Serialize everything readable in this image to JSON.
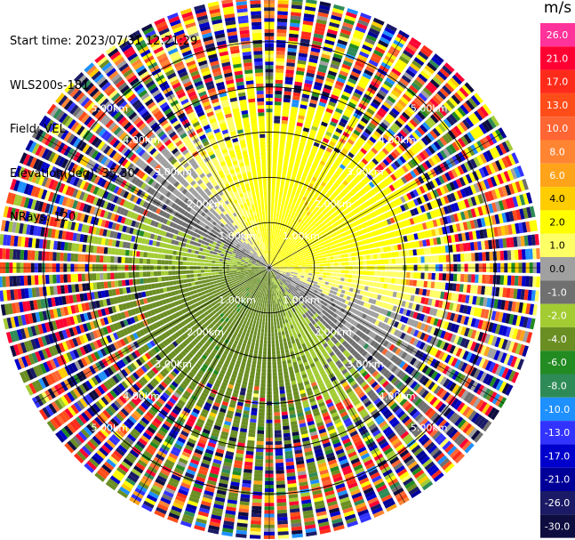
{
  "info": {
    "start_time": "Start time: 2023/07/31 12:21:29",
    "instrument": "WLS200s-181",
    "field": "Field: VEL",
    "elevation": "Elevation(deg): 35.30",
    "nrays": "NRays: 120"
  },
  "colorbar": {
    "unit": "m/s",
    "ticks": [
      "26.0",
      "21.0",
      "17.0",
      "13.0",
      "10.0",
      "8.0",
      "6.0",
      "4.0",
      "2.0",
      "1.0",
      "0.0",
      "-1.0",
      "-2.0",
      "-4.0",
      "-6.0",
      "-8.0",
      "-10.0",
      "-13.0",
      "-17.0",
      "-21.0",
      "-26.0",
      "-30.0"
    ],
    "colors": [
      "#ff3399",
      "#ff0033",
      "#ff2b1a",
      "#ff4d1a",
      "#ff6633",
      "#ff8533",
      "#ffa31a",
      "#ffcc00",
      "#ffff00",
      "#ffff66",
      "#a0a0a0",
      "#707070",
      "#a3cc33",
      "#6b8e23",
      "#228b22",
      "#2e8b57",
      "#1e90ff",
      "#3333ff",
      "#0000cc",
      "#000099",
      "#1a1a66",
      "#0d0d40"
    ]
  },
  "chart_data": {
    "type": "heatmap",
    "field": "VEL",
    "nrays": 120,
    "range_rings_km": [
      1,
      2,
      3,
      4,
      5
    ],
    "range_labels": [
      "1.00km",
      "2.00km",
      "3.00km",
      "4.00km",
      "5.00km"
    ],
    "max_range_km": 6.0,
    "azimuth_spokes_deg": [
      0,
      30,
      60,
      90,
      120,
      150,
      180,
      210,
      240,
      270,
      300,
      330
    ],
    "pattern": {
      "gate_km": 0.08,
      "near_field_km": 2.4,
      "wind_direction_deg": 35,
      "wind_speed_ms": 3.5,
      "noise_start_km": 2.6,
      "noise_full_km": 4.2
    }
  }
}
